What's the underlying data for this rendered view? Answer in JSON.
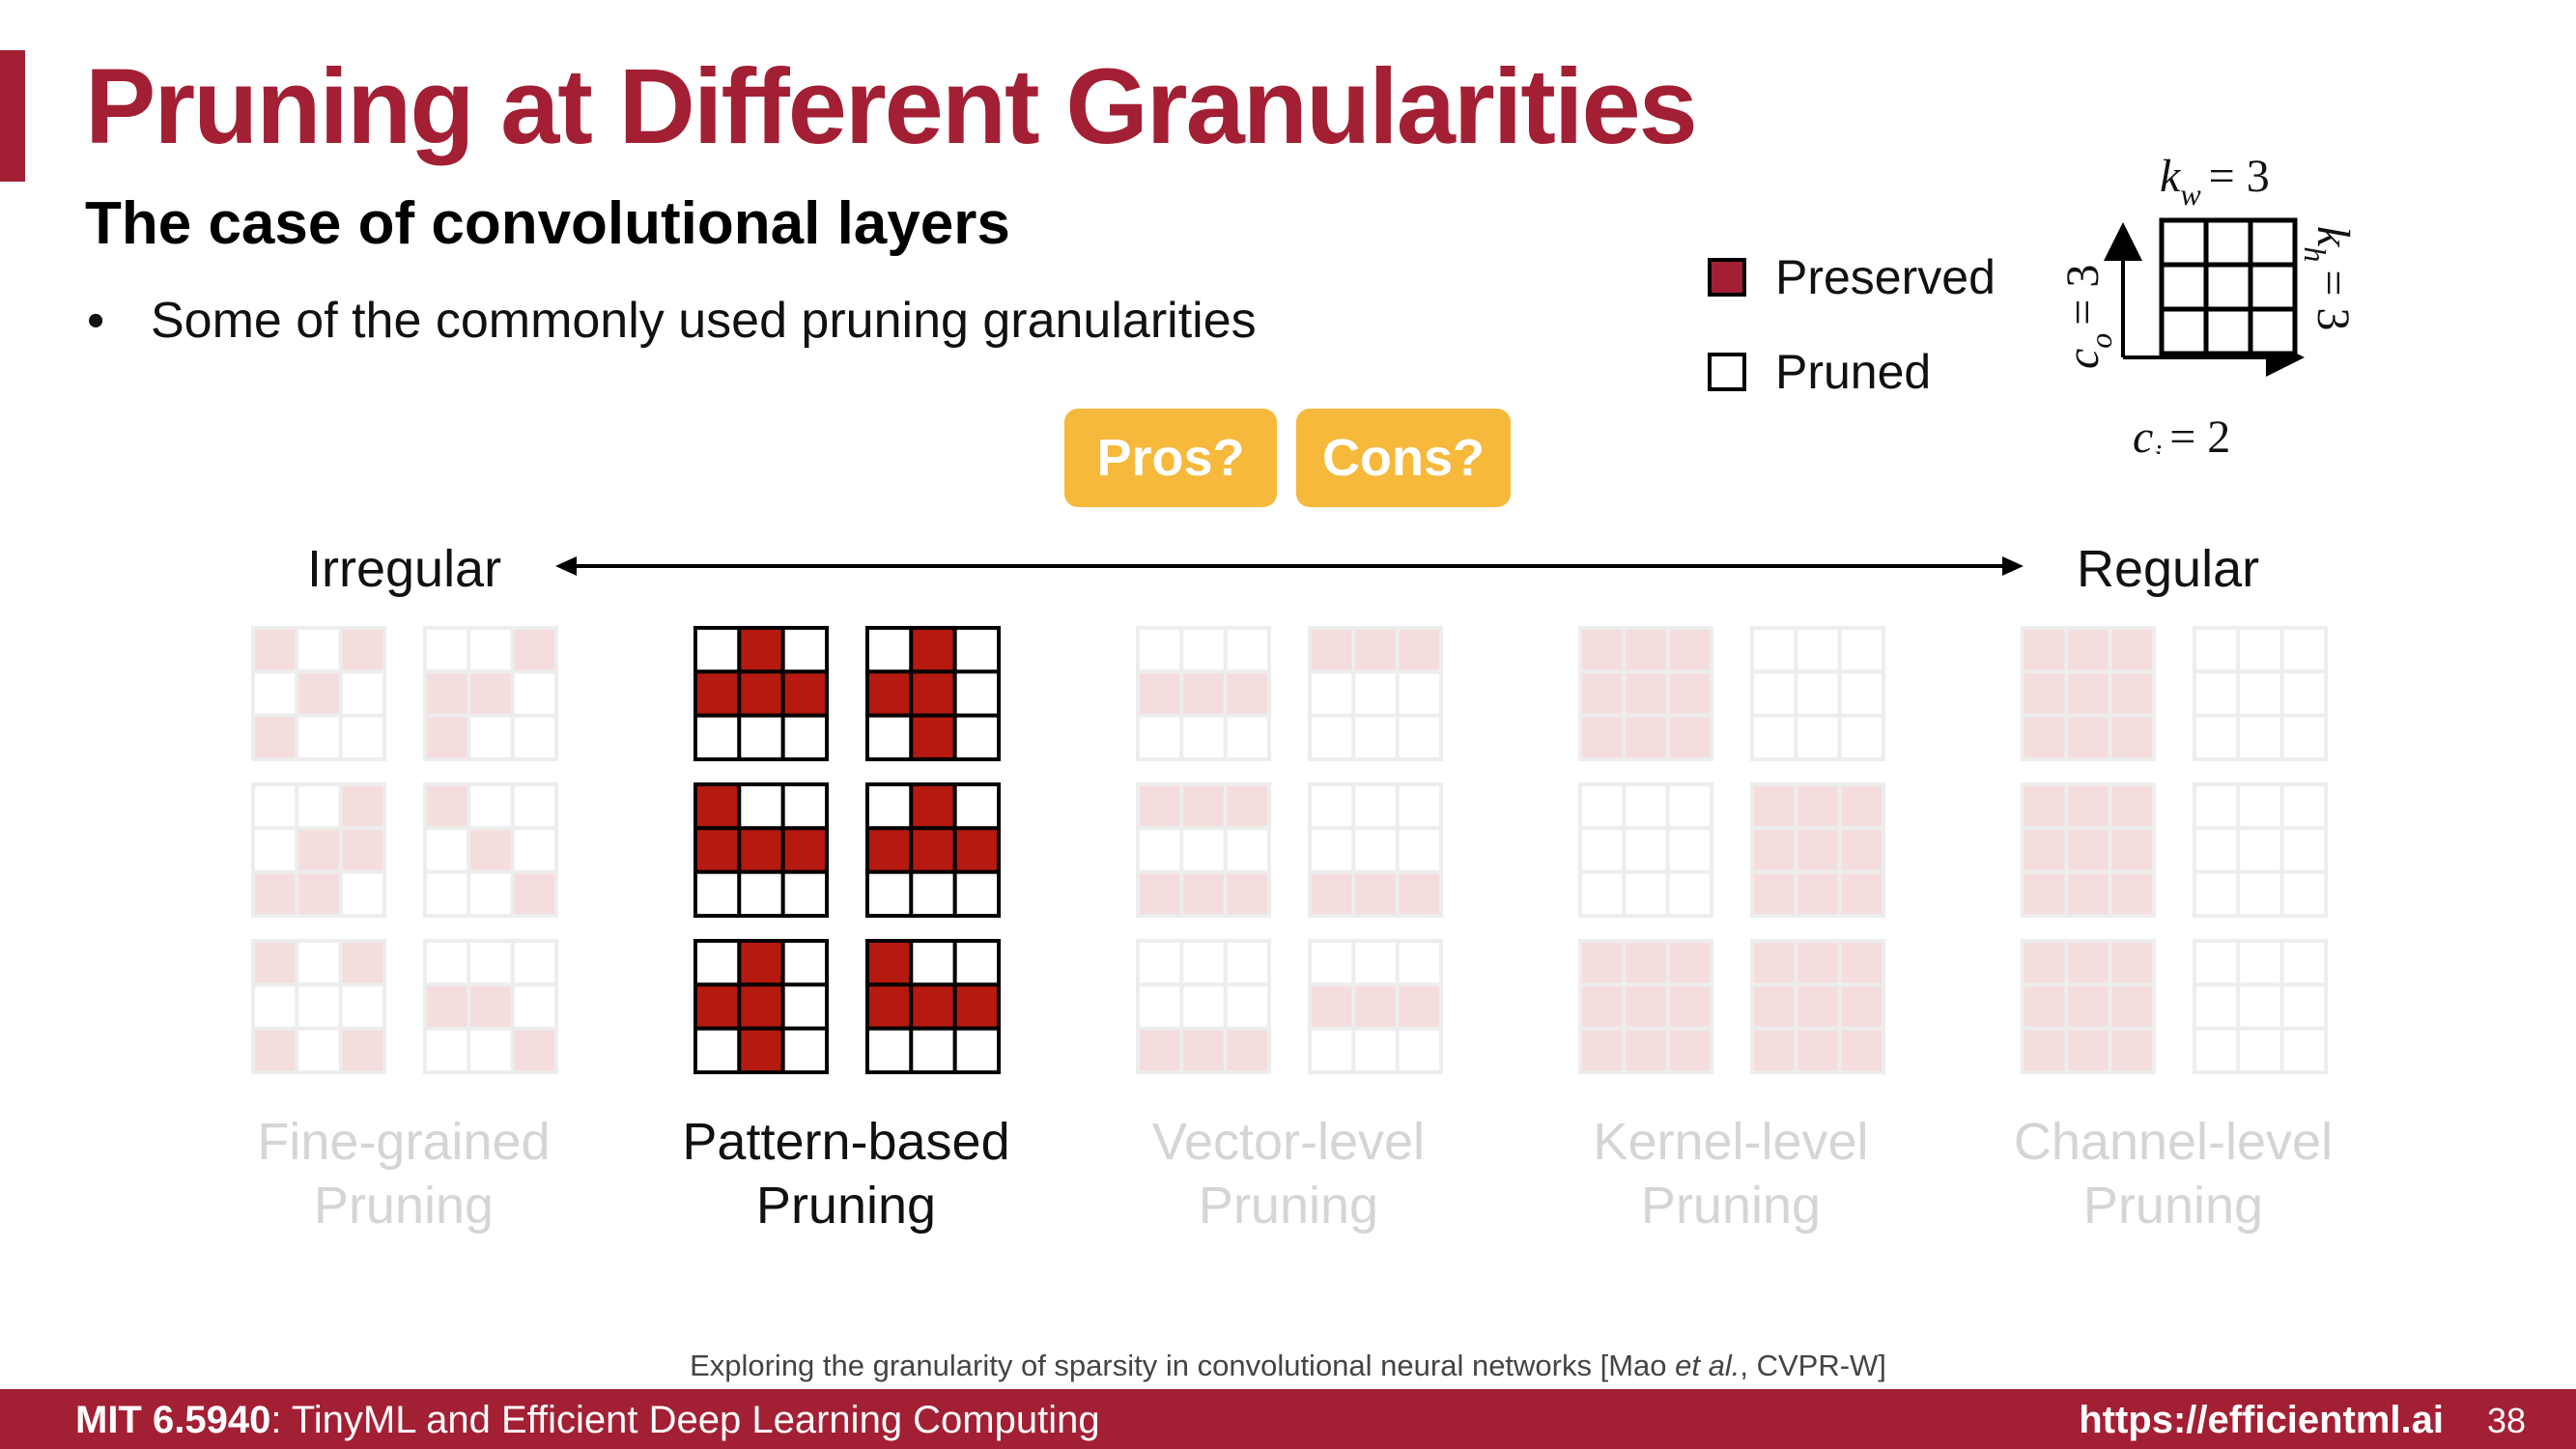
{
  "slide": {
    "title": "Pruning at Different Granularities",
    "subtitle": "The case of convolutional layers",
    "bullet": "Some of the commonly used pruning granularities",
    "bullet_marker": "•"
  },
  "legend": {
    "preserved": "Preserved",
    "pruned": "Pruned",
    "preserved_color": "#a31f34"
  },
  "kernel_diagram": {
    "kw_label": "kw = 3",
    "kh_label": "kh = 3",
    "co_label": "co = 3",
    "ci_label": "ci = 2",
    "kw": {
      "base": "k",
      "sub": "w",
      "eq": "= 3"
    },
    "kh": {
      "base": "k",
      "sub": "h",
      "eq": "= 3"
    },
    "co": {
      "base": "c",
      "sub": "o",
      "eq": "= 3"
    },
    "ci": {
      "base": "c",
      "sub": "i",
      "eq": "= 2"
    }
  },
  "buttons": {
    "pros": "Pros?",
    "cons": "Cons?",
    "color": "#f6b93b"
  },
  "axis": {
    "left": "Irregular",
    "right": "Regular"
  },
  "granularities": [
    {
      "label_line1": "Fine-grained",
      "label_line2": "Pruning",
      "highlighted": false,
      "kernels": [
        [
          [
            1,
            0,
            1
          ],
          [
            0,
            1,
            0
          ],
          [
            1,
            0,
            0
          ]
        ],
        [
          [
            0,
            0,
            1
          ],
          [
            1,
            1,
            0
          ],
          [
            1,
            0,
            0
          ]
        ],
        [
          [
            0,
            0,
            1
          ],
          [
            0,
            1,
            1
          ],
          [
            1,
            1,
            0
          ]
        ],
        [
          [
            1,
            0,
            0
          ],
          [
            0,
            1,
            0
          ],
          [
            0,
            0,
            1
          ]
        ],
        [
          [
            1,
            0,
            1
          ],
          [
            0,
            0,
            0
          ],
          [
            1,
            0,
            1
          ]
        ],
        [
          [
            0,
            0,
            0
          ],
          [
            1,
            1,
            0
          ],
          [
            0,
            0,
            1
          ]
        ]
      ]
    },
    {
      "label_line1": "Pattern-based",
      "label_line2": "Pruning",
      "highlighted": true,
      "kernels": [
        [
          [
            0,
            1,
            0
          ],
          [
            1,
            1,
            1
          ],
          [
            0,
            0,
            0
          ]
        ],
        [
          [
            0,
            1,
            0
          ],
          [
            1,
            1,
            0
          ],
          [
            0,
            1,
            0
          ]
        ],
        [
          [
            1,
            0,
            0
          ],
          [
            1,
            1,
            1
          ],
          [
            0,
            0,
            0
          ]
        ],
        [
          [
            0,
            1,
            0
          ],
          [
            1,
            1,
            1
          ],
          [
            0,
            0,
            0
          ]
        ],
        [
          [
            0,
            1,
            0
          ],
          [
            1,
            1,
            0
          ],
          [
            0,
            1,
            0
          ]
        ],
        [
          [
            1,
            0,
            0
          ],
          [
            1,
            1,
            1
          ],
          [
            0,
            0,
            0
          ]
        ]
      ]
    },
    {
      "label_line1": "Vector-level",
      "label_line2": "Pruning",
      "highlighted": false,
      "kernels": [
        [
          [
            0,
            0,
            0
          ],
          [
            1,
            1,
            1
          ],
          [
            0,
            0,
            0
          ]
        ],
        [
          [
            1,
            1,
            1
          ],
          [
            0,
            0,
            0
          ],
          [
            0,
            0,
            0
          ]
        ],
        [
          [
            1,
            1,
            1
          ],
          [
            0,
            0,
            0
          ],
          [
            1,
            1,
            1
          ]
        ],
        [
          [
            0,
            0,
            0
          ],
          [
            0,
            0,
            0
          ],
          [
            1,
            1,
            1
          ]
        ],
        [
          [
            0,
            0,
            0
          ],
          [
            0,
            0,
            0
          ],
          [
            1,
            1,
            1
          ]
        ],
        [
          [
            0,
            0,
            0
          ],
          [
            1,
            1,
            1
          ],
          [
            0,
            0,
            0
          ]
        ]
      ]
    },
    {
      "label_line1": "Kernel-level",
      "label_line2": "Pruning",
      "highlighted": false,
      "kernels": [
        [
          [
            1,
            1,
            1
          ],
          [
            1,
            1,
            1
          ],
          [
            1,
            1,
            1
          ]
        ],
        [
          [
            0,
            0,
            0
          ],
          [
            0,
            0,
            0
          ],
          [
            0,
            0,
            0
          ]
        ],
        [
          [
            0,
            0,
            0
          ],
          [
            0,
            0,
            0
          ],
          [
            0,
            0,
            0
          ]
        ],
        [
          [
            1,
            1,
            1
          ],
          [
            1,
            1,
            1
          ],
          [
            1,
            1,
            1
          ]
        ],
        [
          [
            1,
            1,
            1
          ],
          [
            1,
            1,
            1
          ],
          [
            1,
            1,
            1
          ]
        ],
        [
          [
            1,
            1,
            1
          ],
          [
            1,
            1,
            1
          ],
          [
            1,
            1,
            1
          ]
        ]
      ]
    },
    {
      "label_line1": "Channel-level",
      "label_line2": "Pruning",
      "highlighted": false,
      "kernels": [
        [
          [
            1,
            1,
            1
          ],
          [
            1,
            1,
            1
          ],
          [
            1,
            1,
            1
          ]
        ],
        [
          [
            0,
            0,
            0
          ],
          [
            0,
            0,
            0
          ],
          [
            0,
            0,
            0
          ]
        ],
        [
          [
            1,
            1,
            1
          ],
          [
            1,
            1,
            1
          ],
          [
            1,
            1,
            1
          ]
        ],
        [
          [
            0,
            0,
            0
          ],
          [
            0,
            0,
            0
          ],
          [
            0,
            0,
            0
          ]
        ],
        [
          [
            1,
            1,
            1
          ],
          [
            1,
            1,
            1
          ],
          [
            1,
            1,
            1
          ]
        ],
        [
          [
            0,
            0,
            0
          ],
          [
            0,
            0,
            0
          ],
          [
            0,
            0,
            0
          ]
        ]
      ]
    }
  ],
  "citation": {
    "prefix": "Exploring the granularity of sparsity in convolutional neural networks [Mao ",
    "etal": "et al.",
    "suffix": ", CVPR-W]"
  },
  "footer": {
    "course_code": "MIT 6.5940",
    "course_name": ": TinyML and Efficient Deep Learning Computing",
    "url": "https://efficientml.ai",
    "page": "38"
  },
  "colors": {
    "accent": "#a31f34",
    "fill_red": "#b5190f"
  }
}
